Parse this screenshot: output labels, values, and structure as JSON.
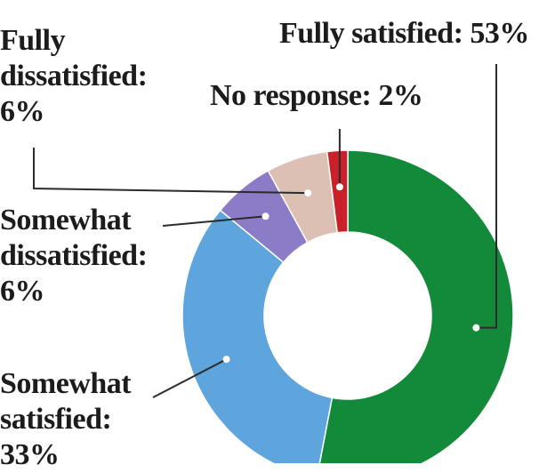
{
  "chart_data": {
    "type": "pie",
    "donut": true,
    "slices": [
      {
        "label": "Fully satisfied",
        "value": 53,
        "display": "Fully satisfied: 53%",
        "color": "#138a3a"
      },
      {
        "label": "Somewhat satisfied",
        "value": 33,
        "display": "Somewhat\nsatisfied:\n33%",
        "color": "#5ea4dd"
      },
      {
        "label": "Somewhat dissatisfied",
        "value": 6,
        "display": "Somewhat\ndissatisfied:\n6%",
        "color": "#8c7bc6"
      },
      {
        "label": "Fully dissatisfied",
        "value": 6,
        "display": "Fully\ndissatisfied:\n6%",
        "color": "#dcc0b4"
      },
      {
        "label": "No response",
        "value": 2,
        "display": "No response: 2%",
        "color": "#c9202a"
      }
    ],
    "legend": "none"
  },
  "colors": {
    "leader_line": "#2b2b2b",
    "separator": "#ffffff",
    "label_text": "#1c1c1c"
  }
}
